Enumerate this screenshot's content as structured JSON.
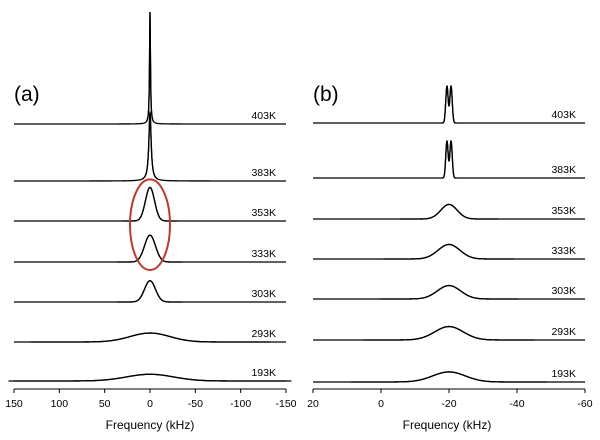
{
  "chart_data": [
    {
      "type": "line",
      "panel_label": "(a)",
      "xlabel": "Frequency (kHz)",
      "xlim": [
        150,
        -150
      ],
      "xticks": [
        150,
        100,
        50,
        0,
        -50,
        -100,
        -150
      ],
      "highlight": {
        "temperatures": [
          "353K",
          "333K"
        ],
        "color": "#c0392b"
      },
      "series": [
        {
          "name": "403K",
          "peak_center": 0,
          "peak_width": 0.6,
          "peak_height": 1.0,
          "shape": "sharp"
        },
        {
          "name": "383K",
          "peak_center": 0,
          "peak_width": 1.5,
          "peak_height": 0.61,
          "shape": "sharp"
        },
        {
          "name": "353K",
          "peak_center": 0,
          "peak_width": 5,
          "peak_height": 0.3,
          "shape": "gaussian"
        },
        {
          "name": "333K",
          "peak_center": 0,
          "peak_width": 6,
          "peak_height": 0.24,
          "shape": "gaussian"
        },
        {
          "name": "303K",
          "peak_center": 0,
          "peak_width": 6,
          "peak_height": 0.19,
          "shape": "gaussian"
        },
        {
          "name": "293K",
          "peak_center": 0,
          "peak_width": 22,
          "peak_height": 0.08,
          "shape": "gaussian"
        },
        {
          "name": "193K",
          "peak_center": 0,
          "peak_width": 26,
          "peak_height": 0.06,
          "shape": "gaussian"
        }
      ]
    },
    {
      "type": "line",
      "panel_label": "(b)",
      "xlabel": "Frequency (kHz)",
      "xlim": [
        20,
        -60
      ],
      "xticks": [
        20,
        0,
        -20,
        -40,
        -60
      ],
      "series": [
        {
          "name": "403K",
          "peak_center": -20,
          "peak_width": 0.35,
          "peak_height": 0.33,
          "shape": "doublet",
          "split": 0.6
        },
        {
          "name": "383K",
          "peak_center": -20,
          "peak_width": 0.35,
          "peak_height": 0.33,
          "shape": "doublet",
          "split": 0.6
        },
        {
          "name": "353K",
          "peak_center": -20,
          "peak_width": 2.4,
          "peak_height": 0.13,
          "shape": "gaussian"
        },
        {
          "name": "333K",
          "peak_center": -20,
          "peak_width": 3.2,
          "peak_height": 0.13,
          "shape": "gaussian"
        },
        {
          "name": "303K",
          "peak_center": -20,
          "peak_width": 3.4,
          "peak_height": 0.12,
          "shape": "gaussian"
        },
        {
          "name": "293K",
          "peak_center": -20,
          "peak_width": 4.2,
          "peak_height": 0.12,
          "shape": "gaussian"
        },
        {
          "name": "193K",
          "peak_center": -20,
          "peak_width": 4.8,
          "peak_height": 0.09,
          "shape": "gaussian"
        }
      ]
    }
  ]
}
